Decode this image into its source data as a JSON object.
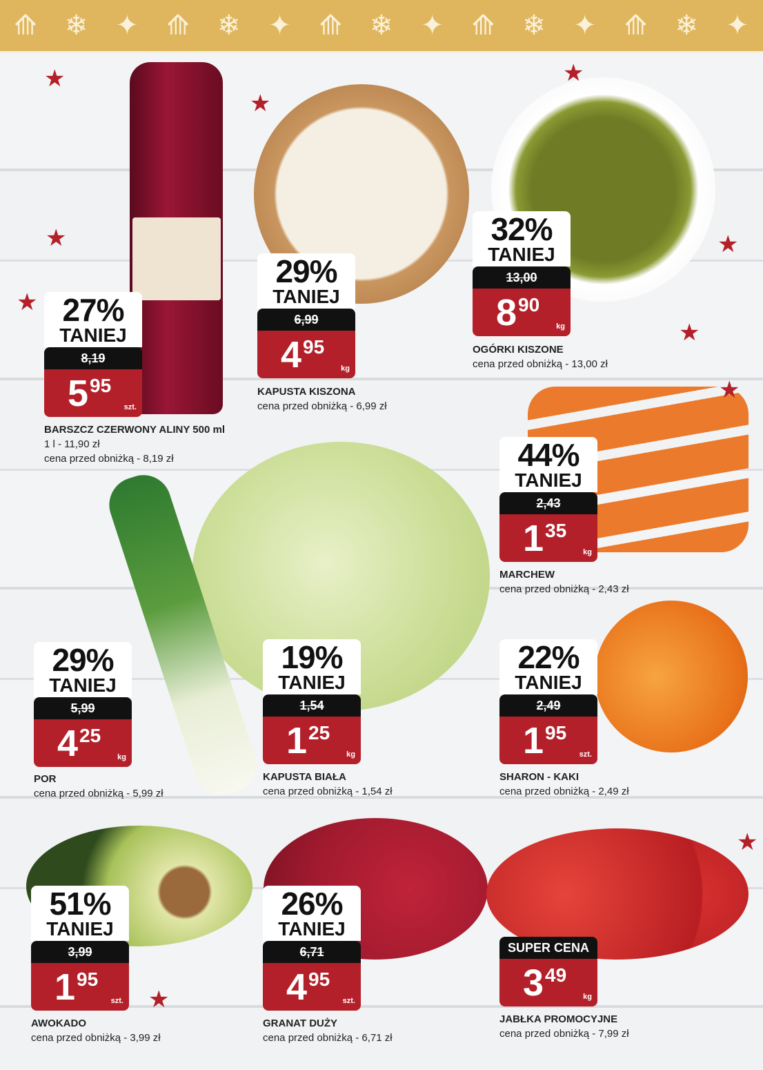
{
  "header": {
    "icons": [
      "tree-icon",
      "snowflake-icon",
      "star-icon",
      "tree-icon",
      "snowflake-icon",
      "star-icon",
      "tree-icon",
      "snowflake-icon",
      "star-icon",
      "tree-icon",
      "snowflake-icon",
      "star-icon",
      "tree-icon",
      "snowflake-icon",
      "star-icon"
    ]
  },
  "colors": {
    "header": "#dfb65e",
    "price_red": "#b3202a",
    "old_price_black": "#111111"
  },
  "products": [
    {
      "id": "barszcz",
      "percent": "27%",
      "label": "TANIEJ",
      "old_price": "8,19",
      "price_int": "5",
      "price_dec": "95",
      "unit": "szt.",
      "name": "BARSZCZ CZERWONY ALINY 500 ml",
      "lines": [
        "1 l - 11,90 zł",
        "cena przed obniżką - 8,19 zł"
      ]
    },
    {
      "id": "kapusta-kiszona",
      "percent": "29%",
      "label": "TANIEJ",
      "old_price": "6,99",
      "price_int": "4",
      "price_dec": "95",
      "unit": "kg",
      "name": "KAPUSTA KISZONA",
      "lines": [
        "cena przed obniżką - 6,99 zł"
      ]
    },
    {
      "id": "ogorki-kiszone",
      "percent": "32%",
      "label": "TANIEJ",
      "old_price": "13,00",
      "price_int": "8",
      "price_dec": "90",
      "unit": "kg",
      "name": "OGÓRKI KISZONE",
      "lines": [
        "cena przed obniżką - 13,00 zł"
      ]
    },
    {
      "id": "marchew",
      "percent": "44%",
      "label": "TANIEJ",
      "old_price": "2,43",
      "price_int": "1",
      "price_dec": "35",
      "unit": "kg",
      "name": "MARCHEW",
      "lines": [
        "cena przed obniżką - 2,43 zł"
      ]
    },
    {
      "id": "por",
      "percent": "29%",
      "label": "TANIEJ",
      "old_price": "5,99",
      "price_int": "4",
      "price_dec": "25",
      "unit": "kg",
      "name": "POR",
      "lines": [
        "cena przed obniżką - 5,99 zł"
      ]
    },
    {
      "id": "kapusta-biala",
      "percent": "19%",
      "label": "TANIEJ",
      "old_price": "1,54",
      "price_int": "1",
      "price_dec": "25",
      "unit": "kg",
      "name": "KAPUSTA BIAŁA",
      "lines": [
        "cena przed obniżką - 1,54 zł"
      ]
    },
    {
      "id": "sharon-kaki",
      "percent": "22%",
      "label": "TANIEJ",
      "old_price": "2,49",
      "price_int": "1",
      "price_dec": "95",
      "unit": "szt.",
      "name": "SHARON - KAKI",
      "lines": [
        "cena przed obniżką - 2,49 zł"
      ]
    },
    {
      "id": "awokado",
      "percent": "51%",
      "label": "TANIEJ",
      "old_price": "3,99",
      "price_int": "1",
      "price_dec": "95",
      "unit": "szt.",
      "name": "AWOKADO",
      "lines": [
        "cena przed obniżką - 3,99 zł"
      ]
    },
    {
      "id": "granat",
      "percent": "26%",
      "label": "TANIEJ",
      "old_price": "6,71",
      "price_int": "4",
      "price_dec": "95",
      "unit": "szt.",
      "name": "GRANAT DUŻY",
      "lines": [
        "cena przed obniżką - 6,71 zł"
      ]
    },
    {
      "id": "jablka",
      "super": "SUPER CENA",
      "price_int": "3",
      "price_dec": "49",
      "unit": "kg",
      "name": "JABŁKA PROMOCYJNE",
      "lines": [
        "cena przed obniżką - 7,99 zł"
      ]
    }
  ]
}
